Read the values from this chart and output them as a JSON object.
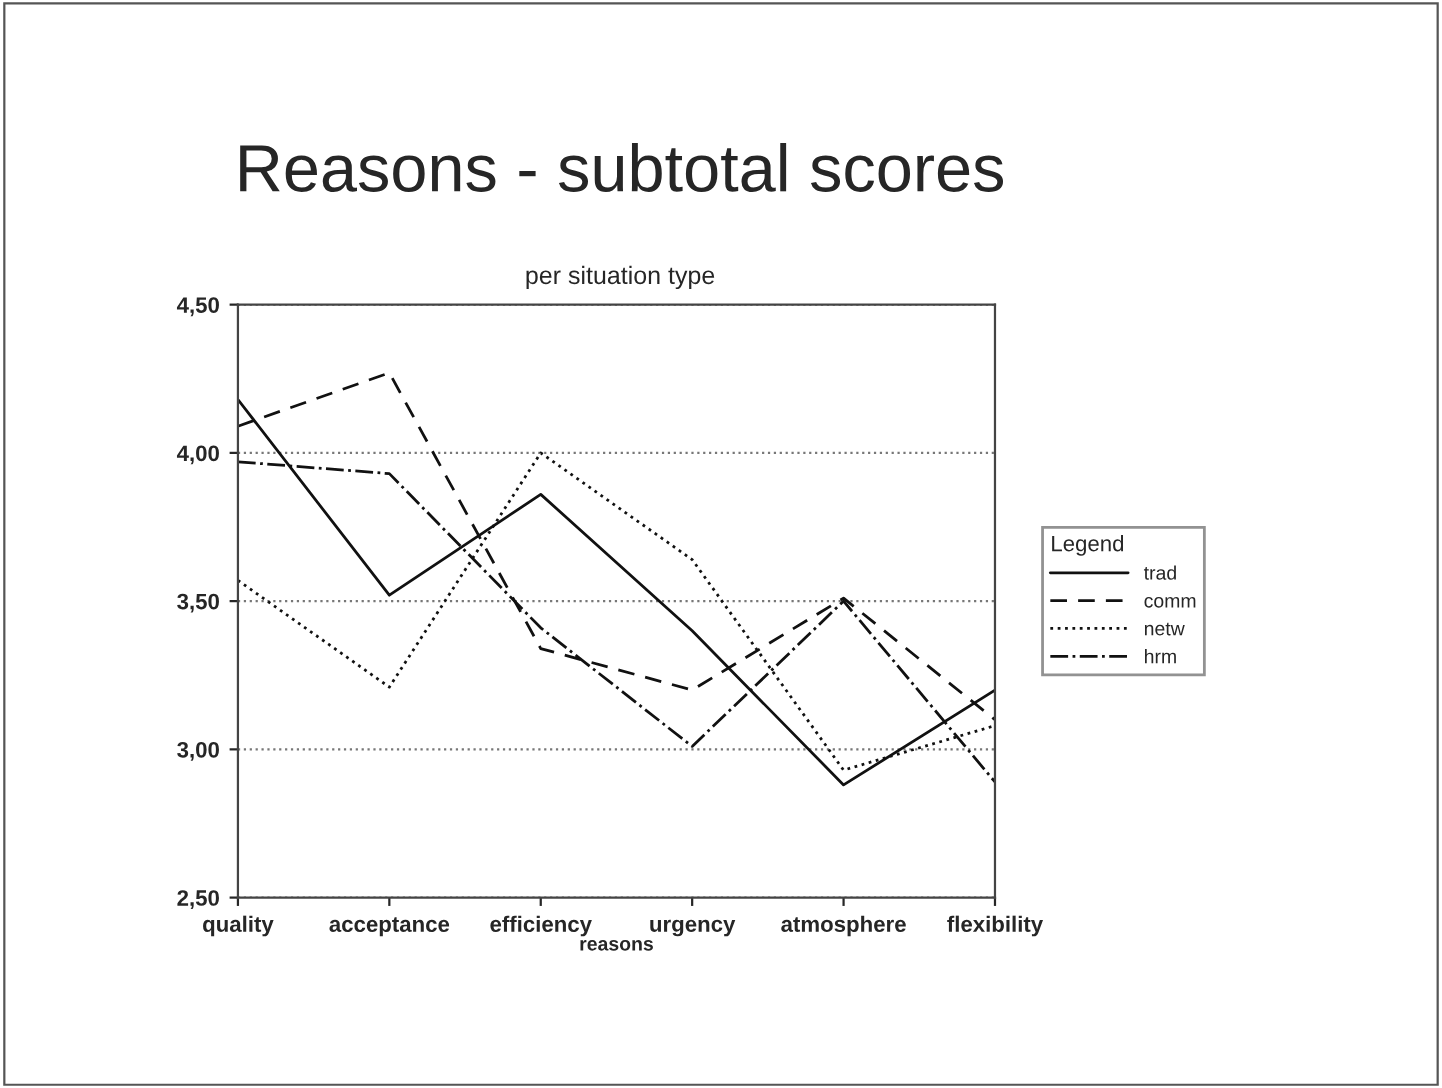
{
  "chart_data": {
    "type": "line",
    "title": "Reasons - subtotal scores",
    "subtitle": "per situation type",
    "xlabel": "reasons",
    "legend_title": "Legend",
    "categories": [
      "quality",
      "acceptance",
      "efficiency",
      "urgency",
      "atmosphere",
      "flexibility"
    ],
    "series": [
      {
        "name": "trad",
        "color": "#111111",
        "line_style": "solid",
        "values": [
          4.18,
          3.52,
          3.86,
          3.4,
          2.88,
          3.2
        ]
      },
      {
        "name": "comm",
        "color": "#111111",
        "line_style": "dashed",
        "values": [
          4.09,
          4.27,
          3.34,
          3.2,
          3.51,
          3.1
        ]
      },
      {
        "name": "netw",
        "color": "#111111",
        "line_style": "dotted",
        "values": [
          3.57,
          3.21,
          4.0,
          3.64,
          2.93,
          3.08
        ]
      },
      {
        "name": "hrm",
        "color": "#111111",
        "line_style": "dashdot",
        "values": [
          3.97,
          3.93,
          3.41,
          3.01,
          3.5,
          2.89
        ]
      }
    ],
    "ylim": [
      2.5,
      4.5
    ],
    "yticks": [
      {
        "value": 2.5,
        "label": "2,50"
      },
      {
        "value": 3.0,
        "label": "3,00"
      },
      {
        "value": 3.5,
        "label": "3,50"
      },
      {
        "value": 4.0,
        "label": "4,00"
      },
      {
        "value": 4.5,
        "label": "4,50"
      }
    ],
    "grid": "y",
    "legend": "right",
    "marker": "none"
  }
}
